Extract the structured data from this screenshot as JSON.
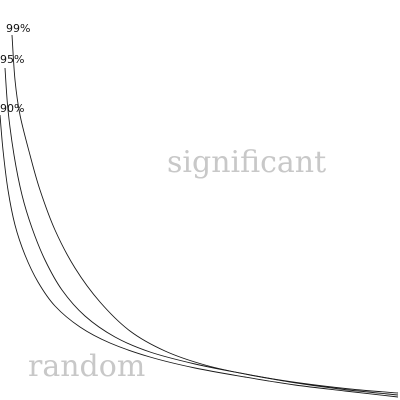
{
  "chart_data": {
    "type": "line",
    "title": "",
    "xlabel": "",
    "ylabel": "",
    "grid": false,
    "legend": "none",
    "series": [
      {
        "name": "99%",
        "color": "#1a1a1a",
        "x": [
          12,
          15,
          20,
          30,
          40,
          55,
          75,
          100,
          130,
          165,
          205,
          250,
          300,
          350,
          398
        ],
        "y": [
          35,
          80,
          115,
          155,
          190,
          230,
          268,
          302,
          331,
          351,
          365,
          375,
          383,
          389,
          393
        ]
      },
      {
        "name": "95%",
        "color": "#1a1a1a",
        "x": [
          5,
          8,
          14,
          22,
          32,
          45,
          62,
          85,
          115,
          150,
          195,
          240,
          290,
          340,
          398
        ],
        "y": [
          68,
          110,
          155,
          195,
          228,
          260,
          290,
          316,
          337,
          352,
          364,
          373,
          382,
          389,
          395
        ]
      },
      {
        "name": "90%",
        "color": "#1a1a1a",
        "x": [
          0,
          3,
          8,
          15,
          25,
          38,
          55,
          80,
          110,
          150,
          195,
          245,
          295,
          345,
          398
        ],
        "y": [
          115,
          150,
          190,
          225,
          255,
          282,
          306,
          327,
          343,
          357,
          368,
          377,
          385,
          391,
          397
        ]
      }
    ],
    "regions": [
      {
        "name": "significant-region",
        "text": "significant"
      },
      {
        "name": "random-region",
        "text": "random"
      }
    ]
  }
}
